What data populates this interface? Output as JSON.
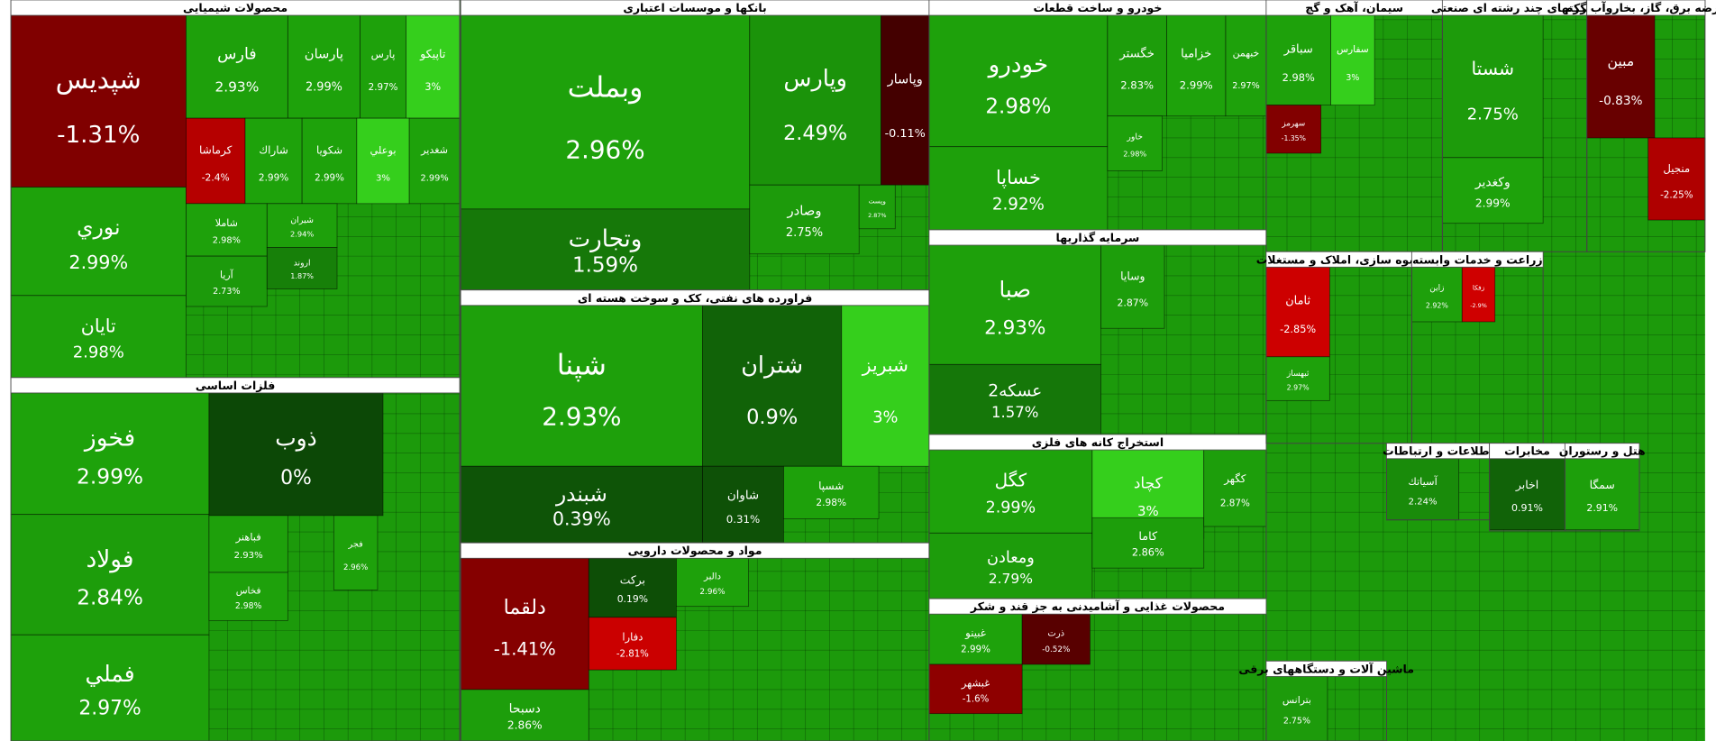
{
  "chart_data": {
    "type": "treemap",
    "sectors": [
      {
        "name": "محصولات شیمیایی",
        "categories": [
          "شپدیس",
          "نوري",
          "تايان",
          "فارس",
          "پارسان",
          "پارس",
          "تاپيكو",
          "كرماشا",
          "شاراك",
          "شكويا",
          "بوعلي",
          "شغدير",
          "شاملا",
          "آريا",
          "شيران",
          "اروند"
        ],
        "values": [
          -1.31,
          2.99,
          2.98,
          2.93,
          2.99,
          2.97,
          3,
          -2.4,
          2.99,
          2.99,
          3,
          2.99,
          2.98,
          2.73,
          2.94,
          1.87
        ],
        "value_labels": [
          "-1.31%",
          "2.99%",
          "2.98%",
          "2.93%",
          "2.99%",
          "2.97%",
          "3%",
          "-2.4%",
          "2.99%",
          "2.99%",
          "3%",
          "2.99%",
          "2.98%",
          "2.73%",
          "2.94%",
          "1.87%"
        ]
      },
      {
        "name": "فلزات اساسی",
        "categories": [
          "فخوز",
          "فولاد",
          "فملي",
          "ذوب",
          "فباهنر",
          "فخاس",
          "فجر"
        ],
        "values": [
          2.99,
          2.84,
          2.97,
          0,
          2.93,
          2.98,
          2.96
        ],
        "value_labels": [
          "2.99%",
          "2.84%",
          "2.97%",
          "0%",
          "2.93%",
          "2.98%",
          "2.96%"
        ]
      },
      {
        "name": "بانکها و موسسات اعتباری",
        "categories": [
          "وبملت",
          "وتجارت",
          "وپارس",
          "وپاسار",
          "وصادر",
          "وپست"
        ],
        "values": [
          2.96,
          1.59,
          2.49,
          -0.11,
          2.75,
          2.87
        ],
        "value_labels": [
          "2.96%",
          "1.59%",
          "2.49%",
          "-0.11%",
          "2.75%",
          "2.87%"
        ]
      },
      {
        "name": "فراورده های نفتی، کک و سوخت هسته ای",
        "categories": [
          "شپنا",
          "شتران",
          "شبريز",
          "شبندر",
          "شاوان",
          "شسپا"
        ],
        "values": [
          2.93,
          0.9,
          3,
          0.39,
          0.31,
          2.98
        ],
        "value_labels": [
          "2.93%",
          "0.9%",
          "3%",
          "0.39%",
          "0.31%",
          "2.98%"
        ]
      },
      {
        "name": "مواد و محصولات دارویی",
        "categories": [
          "دلقما",
          "دسبحا",
          "بركت",
          "دفارا",
          "دالبر"
        ],
        "values": [
          -1.41,
          2.86,
          0.19,
          -2.81,
          2.96
        ],
        "value_labels": [
          "-1.41%",
          "2.86%",
          "0.19%",
          "-2.81%",
          "2.96%"
        ]
      },
      {
        "name": "خودرو و ساخت قطعات",
        "categories": [
          "خودرو",
          "خساپا",
          "خگستر",
          "خزامیا",
          "خبهمن",
          "خاور"
        ],
        "values": [
          2.98,
          2.92,
          2.83,
          2.99,
          2.97,
          2.98
        ],
        "value_labels": [
          "2.98%",
          "2.92%",
          "2.83%",
          "2.99%",
          "2.97%",
          "2.98%"
        ]
      },
      {
        "name": "سرمایه گذاریها",
        "categories": [
          "صبا",
          "عسکه2",
          "وسایا"
        ],
        "values": [
          2.93,
          1.57,
          2.87
        ],
        "value_labels": [
          "2.93%",
          "1.57%",
          "2.87%"
        ]
      },
      {
        "name": "استخراج کانه های فلزی",
        "categories": [
          "كگل",
          "ومعادن",
          "كچاد",
          "كاما",
          "كگهر"
        ],
        "values": [
          2.99,
          2.79,
          3,
          2.86,
          2.87
        ],
        "value_labels": [
          "2.99%",
          "2.79%",
          "3%",
          "2.86%",
          "2.87%"
        ]
      },
      {
        "name": "محصولات غذایی و آشامیدنی به جز قند و شکر",
        "categories": [
          "غبينو",
          "غبشهر",
          "ذرت"
        ],
        "values": [
          2.99,
          -1.6,
          -0.52
        ],
        "value_labels": [
          "2.99%",
          "-1.6%",
          "-0.52%"
        ]
      },
      {
        "name": "سیمان، آهک و گچ",
        "categories": [
          "سباقر",
          "سفارس",
          "سهرمز"
        ],
        "values": [
          2.98,
          3,
          -1.35
        ],
        "value_labels": [
          "2.98%",
          "3%",
          "-1.35%"
        ]
      },
      {
        "name": "شرکتهای چند رشته ای صنعتی",
        "categories": [
          "شستا",
          "وكغدير"
        ],
        "values": [
          2.75,
          2.99
        ],
        "value_labels": [
          "2.75%",
          "2.99%"
        ]
      },
      {
        "name": "عرضه برق، گاز، بخاروآب گرم",
        "categories": [
          "مبين",
          "منجيل"
        ],
        "values": [
          -0.83,
          -2.25
        ],
        "value_labels": [
          "-0.83%",
          "-2.25%"
        ]
      },
      {
        "name": "انبوه سازی، املاک و مستغلات",
        "categories": [
          "ثامان",
          "ثبهساز"
        ],
        "values": [
          -2.85,
          2.97
        ],
        "value_labels": [
          "-2.85%",
          "2.97%"
        ]
      },
      {
        "name": "زراعت و خدمات وابسته",
        "categories": [
          "زاين",
          "زفكا"
        ],
        "values": [
          2.92,
          -2.9
        ],
        "value_labels": [
          "2.92%",
          "-2.9%"
        ]
      },
      {
        "name": "اطلاعات و ارتباطات",
        "categories": [
          "آسياتك"
        ],
        "values": [
          2.24
        ],
        "value_labels": [
          "2.24%"
        ]
      },
      {
        "name": "مخابرات",
        "categories": [
          "اخابر"
        ],
        "values": [
          0.91
        ],
        "value_labels": [
          "0.91%"
        ]
      },
      {
        "name": "هتل و رستوران",
        "categories": [
          "سمگا"
        ],
        "values": [
          2.91
        ],
        "value_labels": [
          "2.91%"
        ]
      },
      {
        "name": "ماشین آلات و دستگاههای برقی",
        "categories": [
          "بترانس"
        ],
        "values": [
          2.75
        ],
        "value_labels": [
          "2.75%"
        ]
      }
    ]
  }
}
